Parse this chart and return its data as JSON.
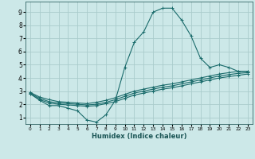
{
  "xlabel": "Humidex (Indice chaleur)",
  "bg_color": "#cce8e8",
  "grid_color": "#aacccc",
  "line_color": "#1a6b6b",
  "xlim": [
    -0.5,
    23.5
  ],
  "ylim": [
    0.5,
    9.8
  ],
  "xticks": [
    0,
    1,
    2,
    3,
    4,
    5,
    6,
    7,
    8,
    9,
    10,
    11,
    12,
    13,
    14,
    15,
    16,
    17,
    18,
    19,
    20,
    21,
    22,
    23
  ],
  "yticks": [
    1,
    2,
    3,
    4,
    5,
    6,
    7,
    8,
    9
  ],
  "line1_x": [
    0,
    1,
    2,
    3,
    4,
    5,
    6,
    7,
    8,
    9,
    10,
    11,
    12,
    13,
    14,
    15,
    16,
    17,
    18,
    19,
    20,
    21,
    22,
    23
  ],
  "line1_y": [
    2.8,
    2.3,
    1.9,
    1.9,
    1.7,
    1.5,
    0.8,
    0.65,
    1.2,
    2.3,
    4.8,
    6.7,
    7.5,
    9.0,
    9.3,
    9.3,
    8.4,
    7.2,
    5.5,
    4.8,
    5.0,
    4.8,
    4.5,
    4.5
  ],
  "line2_x": [
    0,
    1,
    2,
    3,
    4,
    5,
    6,
    7,
    8,
    9,
    10,
    11,
    12,
    13,
    14,
    15,
    16,
    17,
    18,
    19,
    20,
    21,
    22,
    23
  ],
  "line2_y": [
    2.9,
    2.55,
    2.35,
    2.2,
    2.15,
    2.1,
    2.05,
    2.15,
    2.3,
    2.5,
    2.75,
    3.0,
    3.15,
    3.3,
    3.45,
    3.55,
    3.7,
    3.85,
    4.0,
    4.15,
    4.3,
    4.4,
    4.5,
    4.5
  ],
  "line3_x": [
    0,
    1,
    2,
    3,
    4,
    5,
    6,
    7,
    8,
    9,
    10,
    11,
    12,
    13,
    14,
    15,
    16,
    17,
    18,
    19,
    20,
    21,
    22,
    23
  ],
  "line3_y": [
    2.85,
    2.45,
    2.2,
    2.1,
    2.05,
    2.0,
    1.95,
    2.0,
    2.15,
    2.35,
    2.6,
    2.85,
    3.0,
    3.15,
    3.3,
    3.4,
    3.55,
    3.7,
    3.85,
    4.0,
    4.15,
    4.25,
    4.35,
    4.4
  ],
  "line4_x": [
    0,
    1,
    2,
    3,
    4,
    5,
    6,
    7,
    8,
    9,
    10,
    11,
    12,
    13,
    14,
    15,
    16,
    17,
    18,
    19,
    20,
    21,
    22,
    23
  ],
  "line4_y": [
    2.8,
    2.35,
    2.1,
    2.0,
    1.95,
    1.9,
    1.85,
    1.9,
    2.05,
    2.2,
    2.45,
    2.7,
    2.85,
    3.0,
    3.15,
    3.25,
    3.4,
    3.55,
    3.7,
    3.85,
    4.0,
    4.1,
    4.2,
    4.3
  ]
}
